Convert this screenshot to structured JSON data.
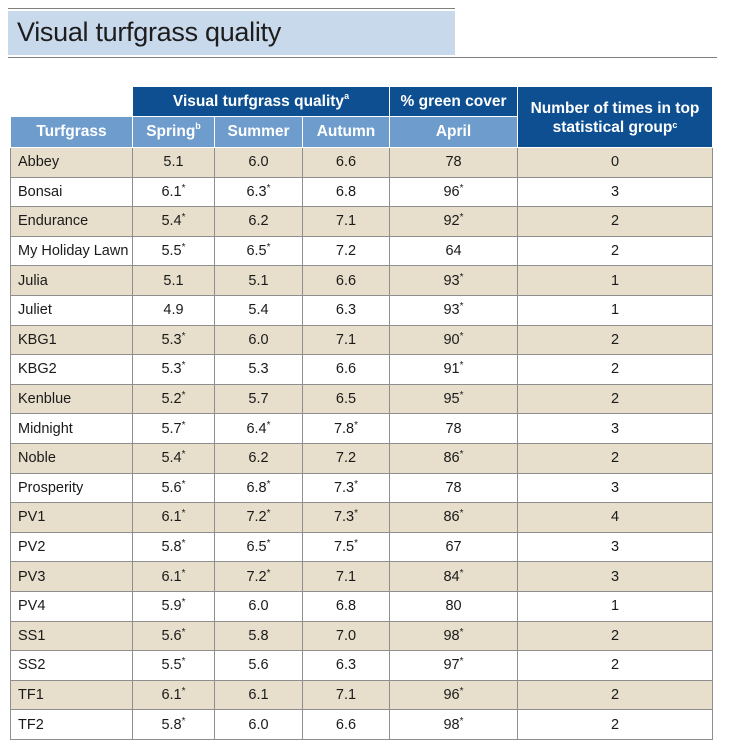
{
  "title": "Visual turfgrass quality",
  "header": {
    "group_quality": "Visual turfgrass quality",
    "group_quality_sup": "a",
    "group_cover": "% green cover",
    "group_top": "Number of times in top statistical group",
    "group_top_sup": "c",
    "col_turfgrass": "Turfgrass",
    "col_spring": "Spring",
    "col_spring_sup": "b",
    "col_summer": "Summer",
    "col_autumn": "Autumn",
    "col_april": "April"
  },
  "rows": [
    {
      "name": "Abbey",
      "spring": "5.1",
      "spring_mark": "",
      "summer": "6.0",
      "summer_mark": "",
      "autumn": "6.6",
      "autumn_mark": "",
      "april": "78",
      "april_mark": "",
      "top": "0"
    },
    {
      "name": "Bonsai",
      "spring": "6.1",
      "spring_mark": "*",
      "summer": "6.3",
      "summer_mark": "*",
      "autumn": "6.8",
      "autumn_mark": "",
      "april": "96",
      "april_mark": "*",
      "top": "3"
    },
    {
      "name": "Endurance",
      "spring": "5.4",
      "spring_mark": "*",
      "summer": "6.2",
      "summer_mark": "",
      "autumn": "7.1",
      "autumn_mark": "",
      "april": "92",
      "april_mark": "*",
      "top": "2"
    },
    {
      "name": "My Holiday Lawn",
      "spring": "5.5",
      "spring_mark": "*",
      "summer": "6.5",
      "summer_mark": "*",
      "autumn": "7.2",
      "autumn_mark": "",
      "april": "64",
      "april_mark": "",
      "top": "2"
    },
    {
      "name": "Julia",
      "spring": "5.1",
      "spring_mark": "",
      "summer": "5.1",
      "summer_mark": "",
      "autumn": "6.6",
      "autumn_mark": "",
      "april": "93",
      "april_mark": "*",
      "top": "1"
    },
    {
      "name": "Juliet",
      "spring": "4.9",
      "spring_mark": "",
      "summer": "5.4",
      "summer_mark": "",
      "autumn": "6.3",
      "autumn_mark": "",
      "april": "93",
      "april_mark": "*",
      "top": "1"
    },
    {
      "name": "KBG1",
      "spring": "5.3",
      "spring_mark": "*",
      "summer": "6.0",
      "summer_mark": "",
      "autumn": "7.1",
      "autumn_mark": "",
      "april": "90",
      "april_mark": "*",
      "top": "2"
    },
    {
      "name": "KBG2",
      "spring": "5.3",
      "spring_mark": "*",
      "summer": "5.3",
      "summer_mark": "",
      "autumn": "6.6",
      "autumn_mark": "",
      "april": "91",
      "april_mark": "*",
      "top": "2"
    },
    {
      "name": "Kenblue",
      "spring": "5.2",
      "spring_mark": "*",
      "summer": "5.7",
      "summer_mark": "",
      "autumn": "6.5",
      "autumn_mark": "",
      "april": "95",
      "april_mark": "*",
      "top": "2"
    },
    {
      "name": "Midnight",
      "spring": "5.7",
      "spring_mark": "*",
      "summer": "6.4",
      "summer_mark": "*",
      "autumn": "7.8",
      "autumn_mark": "*",
      "april": "78",
      "april_mark": "",
      "top": "3"
    },
    {
      "name": "Noble",
      "spring": "5.4",
      "spring_mark": "*",
      "summer": "6.2",
      "summer_mark": "",
      "autumn": "7.2",
      "autumn_mark": "",
      "april": "86",
      "april_mark": "*",
      "top": "2"
    },
    {
      "name": "Prosperity",
      "spring": "5.6",
      "spring_mark": "*",
      "summer": "6.8",
      "summer_mark": "*",
      "autumn": "7.3",
      "autumn_mark": "*",
      "april": "78",
      "april_mark": "",
      "top": "3"
    },
    {
      "name": "PV1",
      "spring": "6.1",
      "spring_mark": "*",
      "summer": "7.2",
      "summer_mark": "*",
      "autumn": "7.3",
      "autumn_mark": "*",
      "april": "86",
      "april_mark": "*",
      "top": "4"
    },
    {
      "name": "PV2",
      "spring": "5.8",
      "spring_mark": "*",
      "summer": "6.5",
      "summer_mark": "*",
      "autumn": "7.5",
      "autumn_mark": "*",
      "april": "67",
      "april_mark": "",
      "top": "3"
    },
    {
      "name": "PV3",
      "spring": "6.1",
      "spring_mark": "*",
      "summer": "7.2",
      "summer_mark": "*",
      "autumn": "7.1",
      "autumn_mark": "",
      "april": "84",
      "april_mark": "*",
      "top": "3"
    },
    {
      "name": "PV4",
      "spring": "5.9",
      "spring_mark": "*",
      "summer": "6.0",
      "summer_mark": "",
      "autumn": "6.8",
      "autumn_mark": "",
      "april": "80",
      "april_mark": "",
      "top": "1"
    },
    {
      "name": "SS1",
      "spring": "5.6",
      "spring_mark": "*",
      "summer": "5.8",
      "summer_mark": "",
      "autumn": "7.0",
      "autumn_mark": "",
      "april": "98",
      "april_mark": "*",
      "top": "2"
    },
    {
      "name": "SS2",
      "spring": "5.5",
      "spring_mark": "*",
      "summer": "5.6",
      "summer_mark": "",
      "autumn": "6.3",
      "autumn_mark": "",
      "april": "97",
      "april_mark": "*",
      "top": "2"
    },
    {
      "name": "TF1",
      "spring": "6.1",
      "spring_mark": "*",
      "summer": "6.1",
      "summer_mark": "",
      "autumn": "7.1",
      "autumn_mark": "",
      "april": "96",
      "april_mark": "*",
      "top": "2"
    },
    {
      "name": "TF2",
      "spring": "5.8",
      "spring_mark": "*",
      "summer": "6.0",
      "summer_mark": "",
      "autumn": "6.6",
      "autumn_mark": "",
      "april": "98",
      "april_mark": "*",
      "top": "2"
    }
  ],
  "colors": {
    "title_band": "#c9d9ec",
    "header_dark": "#0e4f92",
    "header_light": "#6e9ccd",
    "row_shade": "#e7dfcb",
    "row_plain": "#ffffff"
  }
}
